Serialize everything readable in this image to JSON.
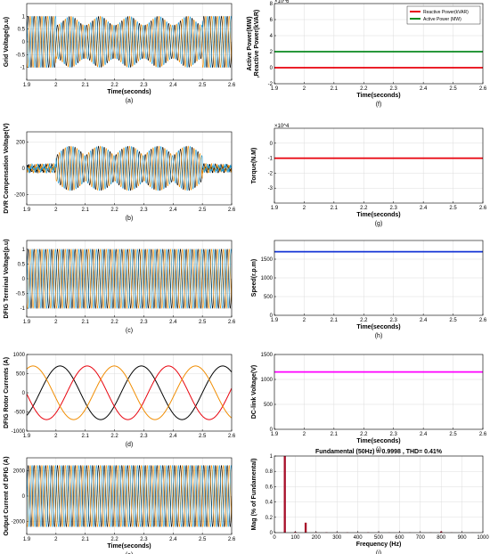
{
  "chart_data": [
    {
      "id": "a",
      "type": "line",
      "caption": "(a)",
      "xlabel": "Time(seconds)",
      "ylabel": "Grid Voltage(p.u)",
      "xlim": [
        1.9,
        2.6
      ],
      "ylim": [
        -1.5,
        1.5
      ],
      "xticks": [
        "1.9",
        "2",
        "2.1",
        "2.2",
        "2.3",
        "2.4",
        "2.5",
        "2.6"
      ],
      "yticks": [
        "-1",
        "-0.5",
        "0",
        "0.5",
        "1"
      ],
      "grid": true,
      "signal": {
        "kind": "three-phase",
        "amplitude": 1.0,
        "frequency_hz": 50,
        "envelope": "sag between 2.0 s and 2.5 s, dipping to about 0.65 p.u",
        "colors": [
          "#000000",
          "#f08c00",
          "#1f9ad6"
        ]
      }
    },
    {
      "id": "b",
      "type": "line",
      "caption": "(b)",
      "xlabel": "",
      "ylabel": "DVR Compensation Voltage(V)",
      "xlim": [
        1.9,
        2.6
      ],
      "ylim": [
        -280,
        280
      ],
      "xticks": [
        "1.9",
        "2",
        "2.1",
        "2.2",
        "2.3",
        "2.4",
        "2.5",
        "2.6"
      ],
      "yticks": [
        "-200",
        "0",
        "200"
      ],
      "grid": true,
      "signal": {
        "kind": "three-phase",
        "amplitude": 170,
        "frequency_hz": 50,
        "envelope": "active between 2.0 s and 2.5 s, noise floor outside",
        "colors": [
          "#000000",
          "#f08c00",
          "#1f9ad6"
        ]
      }
    },
    {
      "id": "c",
      "type": "line",
      "caption": "(c)",
      "xlabel": "",
      "ylabel": "DFIG Terminal Voltage(p.u)",
      "xlim": [
        1.9,
        2.6
      ],
      "ylim": [
        -1.3,
        1.3
      ],
      "xticks": [
        "1.9",
        "2",
        "2.1",
        "2.2",
        "2.3",
        "2.4",
        "2.5",
        "2.6"
      ],
      "yticks": [
        "-1",
        "-0.5",
        "0",
        "0.5",
        "1"
      ],
      "grid": true,
      "signal": {
        "kind": "three-phase",
        "amplitude": 1.0,
        "frequency_hz": 50,
        "envelope": "constant",
        "colors": [
          "#000000",
          "#f08c00",
          "#1f9ad6"
        ]
      }
    },
    {
      "id": "d",
      "type": "line",
      "caption": "(d)",
      "xlabel": "",
      "ylabel": "DFIG Rotor Currents (A)",
      "xlim": [
        1.9,
        2.6
      ],
      "ylim": [
        -1000,
        1000
      ],
      "xticks": [
        "1.9",
        "2",
        "2.1",
        "2.2",
        "2.3",
        "2.4",
        "2.5",
        "2.6"
      ],
      "yticks": [
        "-1000",
        "-500",
        "0",
        "500",
        "1000"
      ],
      "grid": true,
      "signal": {
        "kind": "three-phase",
        "amplitude": 700,
        "frequency_hz": 3.6,
        "envelope": "constant",
        "colors": [
          "#000000",
          "#e8000b",
          "#f08c00"
        ]
      }
    },
    {
      "id": "e",
      "type": "line",
      "caption": "(e)",
      "xlabel": "Time(seconds)",
      "ylabel": "Output Current of DFIG (A)",
      "xlim": [
        1.9,
        2.6
      ],
      "ylim": [
        -3000,
        3000
      ],
      "xticks": [
        "1.9",
        "2",
        "2.1",
        "2.2",
        "2.3",
        "2.4",
        "2.5",
        "2.6"
      ],
      "yticks": [
        "-2000",
        "0",
        "2000"
      ],
      "grid": true,
      "signal": {
        "kind": "three-phase",
        "amplitude": 2400,
        "frequency_hz": 50,
        "envelope": "constant",
        "colors": [
          "#000000",
          "#f08c00",
          "#1f9ad6"
        ]
      }
    },
    {
      "id": "f",
      "type": "line",
      "caption": "(f)",
      "xlabel": "Time(seconds)",
      "ylabel": "Active Power(MW)\n,Reactive Power(kVAR)",
      "xlim": [
        1.9,
        2.6
      ],
      "ylim": [
        -2000000,
        8000000
      ],
      "exponent": "×10^6",
      "xticks": [
        "1.9",
        "2",
        "2.1",
        "2.2",
        "2.3",
        "2.4",
        "2.5",
        "2.6"
      ],
      "yticks": [
        "-2",
        "0",
        "2",
        "4",
        "6",
        "8"
      ],
      "grid": true,
      "legend": {
        "position": "top-right",
        "entries": [
          "Reactive Power(kVAR)",
          "Active Power (MW)"
        ]
      },
      "series": [
        {
          "name": "Reactive Power(kVAR)",
          "color": "#e8000b",
          "x": [
            1.9,
            2.6
          ],
          "y": [
            0,
            0
          ]
        },
        {
          "name": "Active Power (MW)",
          "color": "#0a8a1f",
          "x": [
            1.9,
            2.6
          ],
          "y": [
            2000000,
            2000000
          ]
        }
      ]
    },
    {
      "id": "g",
      "type": "line",
      "caption": "(g)",
      "xlabel": "Time(seconds)",
      "ylabel": "Torque(N.M)",
      "xlim": [
        1.9,
        2.6
      ],
      "ylim": [
        -40000,
        10000
      ],
      "exponent": "×10^4",
      "xticks": [
        "1.9",
        "2",
        "2.1",
        "2.2",
        "2.3",
        "2.4",
        "2.5",
        "2.6"
      ],
      "yticks": [
        "-3",
        "-2",
        "-1",
        "0"
      ],
      "grid": true,
      "series": [
        {
          "color": "#e8000b",
          "x": [
            1.9,
            2.6
          ],
          "y": [
            -10000,
            -10000
          ]
        }
      ]
    },
    {
      "id": "h",
      "type": "line",
      "caption": "(h)",
      "xlabel": "Time(seconds)",
      "ylabel": "Speed(r.p.m)",
      "xlim": [
        1.9,
        2.6
      ],
      "ylim": [
        0,
        2000
      ],
      "xticks": [
        "1.9",
        "2",
        "2.1",
        "2.2",
        "2.3",
        "2.4",
        "2.5",
        "2.6"
      ],
      "yticks": [
        "0",
        "500",
        "1000",
        "1500"
      ],
      "grid": true,
      "series": [
        {
          "color": "#1434d6",
          "x": [
            1.9,
            2.6
          ],
          "y": [
            1700,
            1700
          ]
        }
      ]
    },
    {
      "id": "i",
      "type": "line",
      "caption": "(i)",
      "xlabel": "Time(seconds)",
      "ylabel": "DC-link Voltage(V)",
      "xlim": [
        1.9,
        2.6
      ],
      "ylim": [
        0,
        1500
      ],
      "xticks": [
        "1.9",
        "2",
        "2.1",
        "2.2",
        "2.3",
        "2.4",
        "2.5",
        "2.6"
      ],
      "yticks": [
        "0",
        "500",
        "1000",
        "1500"
      ],
      "grid": true,
      "series": [
        {
          "color": "#ff00ff",
          "x": [
            1.9,
            2.6
          ],
          "y": [
            1150,
            1150
          ]
        }
      ]
    },
    {
      "id": "j",
      "type": "bar",
      "caption": "(j)",
      "title": "Fundamental (50Hz) = 0.9998 , THD= 0.41%",
      "xlabel": "Frequency (Hz)",
      "ylabel": "Mag (% of Fundamental)",
      "xlim": [
        0,
        1000
      ],
      "ylim": [
        0,
        1
      ],
      "xticks": [
        "0",
        "100",
        "200",
        "300",
        "400",
        "500",
        "600",
        "700",
        "800",
        "900",
        "1000"
      ],
      "yticks": [
        "0",
        "0.2",
        "0.4",
        "0.6",
        "0.8",
        "1"
      ],
      "grid": true,
      "color": "#a8102a",
      "x": [
        50,
        100,
        150,
        200,
        250,
        300,
        350,
        400,
        450,
        500,
        550,
        600,
        650,
        700,
        750,
        800,
        850,
        900,
        950
      ],
      "values": [
        1.0,
        0.01,
        0.13,
        0.005,
        0.004,
        0.003,
        0.003,
        0.002,
        0.004,
        0.003,
        0.002,
        0.003,
        0.002,
        0.002,
        0.002,
        0.015,
        0.002,
        0.002,
        0.001
      ]
    }
  ]
}
